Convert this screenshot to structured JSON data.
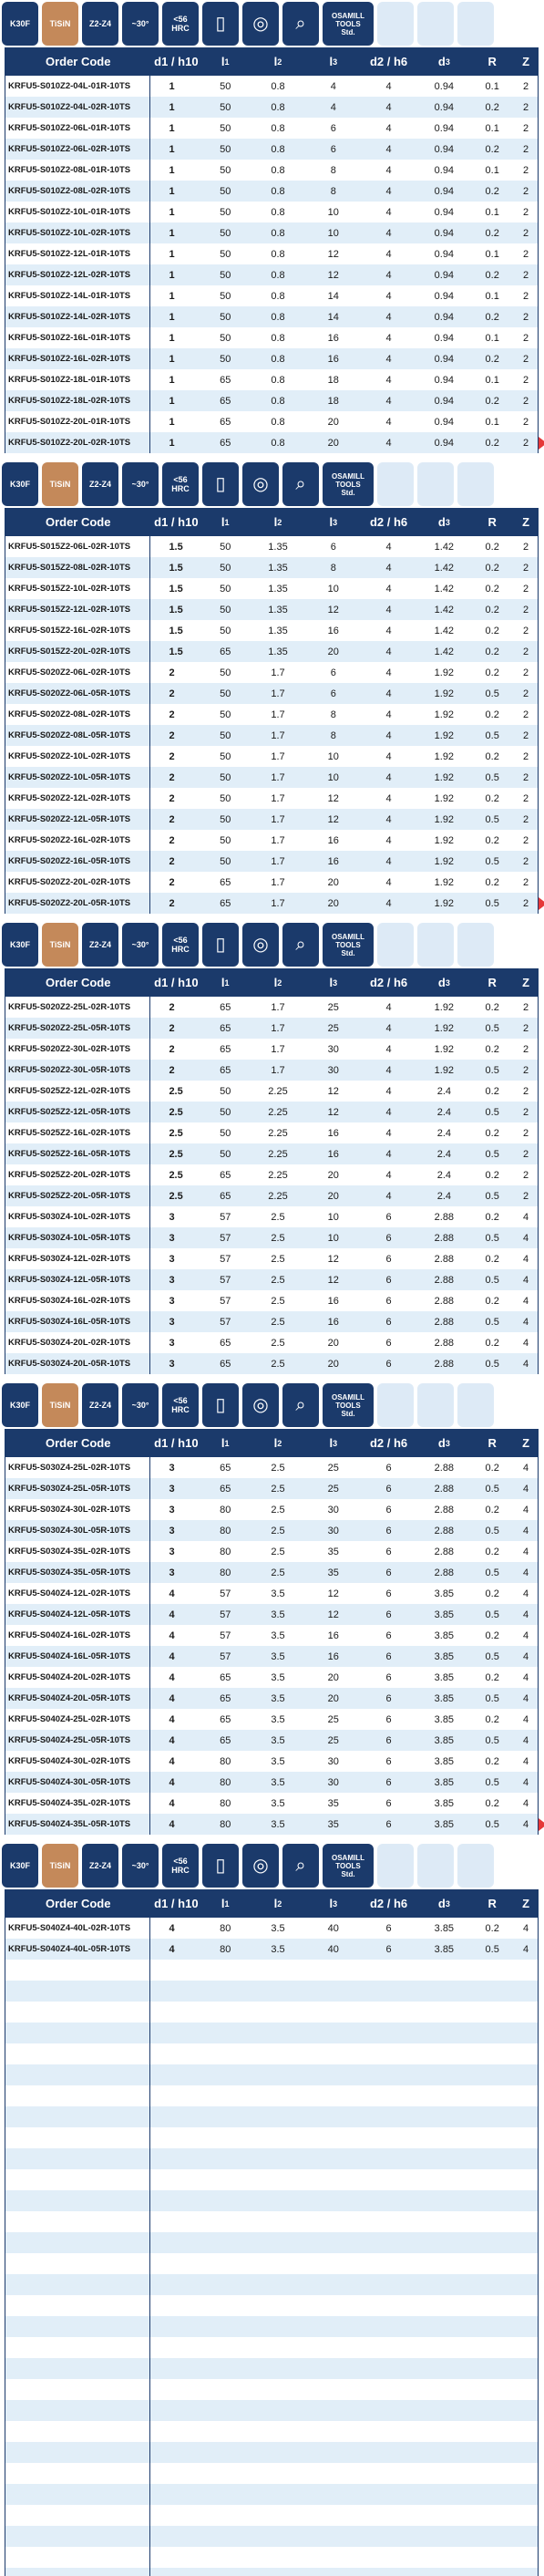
{
  "badges": [
    {
      "icon": "",
      "label": "K30F",
      "style": "dark"
    },
    {
      "icon": "",
      "label": "TiSiN",
      "style": "tan"
    },
    {
      "icon": "",
      "label": "Z2-Z4",
      "style": "dark"
    },
    {
      "icon": "",
      "label": "~30°",
      "style": "dark"
    },
    {
      "icon": "",
      "label": "<56\nHRC",
      "style": "dark"
    },
    {
      "icon": "document-icon",
      "label": "",
      "style": "dark"
    },
    {
      "icon": "globe-icon",
      "label": "",
      "style": "dark"
    },
    {
      "icon": "magnifier-doc-icon",
      "label": "",
      "style": "dark"
    },
    {
      "icon": "",
      "label": "OSAMILL\nTOOLS\nStd.",
      "style": "dark-wide"
    },
    {
      "icon": "",
      "label": "",
      "style": "light"
    },
    {
      "icon": "",
      "label": "",
      "style": "light"
    },
    {
      "icon": "",
      "label": "",
      "style": "light"
    }
  ],
  "headers": {
    "code": "Order Code",
    "d1": "d1 / h10",
    "l1_base": "l",
    "l1_sub": "1",
    "l2_base": "l",
    "l2_sub": "2",
    "l3_base": "l",
    "l3_sub": "3",
    "d2": "d2 / h6",
    "d3_base": "d",
    "d3_sub": "3",
    "r": "R",
    "z": "Z"
  },
  "colors": {
    "navy": "#1b3a6b",
    "tan": "#c4895a",
    "stripe": "#e1eef8",
    "arrow": "#e53838"
  },
  "sections": [
    {
      "arrow": true,
      "blank_rows": 0,
      "rows": [
        [
          "KRFU5-S010Z2-04L-01R-10TS",
          "1",
          "50",
          "0.8",
          "4",
          "4",
          "0.94",
          "0.1",
          "2"
        ],
        [
          "KRFU5-S010Z2-04L-02R-10TS",
          "1",
          "50",
          "0.8",
          "4",
          "4",
          "0.94",
          "0.2",
          "2"
        ],
        [
          "KRFU5-S010Z2-06L-01R-10TS",
          "1",
          "50",
          "0.8",
          "6",
          "4",
          "0.94",
          "0.1",
          "2"
        ],
        [
          "KRFU5-S010Z2-06L-02R-10TS",
          "1",
          "50",
          "0.8",
          "6",
          "4",
          "0.94",
          "0.2",
          "2"
        ],
        [
          "KRFU5-S010Z2-08L-01R-10TS",
          "1",
          "50",
          "0.8",
          "8",
          "4",
          "0.94",
          "0.1",
          "2"
        ],
        [
          "KRFU5-S010Z2-08L-02R-10TS",
          "1",
          "50",
          "0.8",
          "8",
          "4",
          "0.94",
          "0.2",
          "2"
        ],
        [
          "KRFU5-S010Z2-10L-01R-10TS",
          "1",
          "50",
          "0.8",
          "10",
          "4",
          "0.94",
          "0.1",
          "2"
        ],
        [
          "KRFU5-S010Z2-10L-02R-10TS",
          "1",
          "50",
          "0.8",
          "10",
          "4",
          "0.94",
          "0.2",
          "2"
        ],
        [
          "KRFU5-S010Z2-12L-01R-10TS",
          "1",
          "50",
          "0.8",
          "12",
          "4",
          "0.94",
          "0.1",
          "2"
        ],
        [
          "KRFU5-S010Z2-12L-02R-10TS",
          "1",
          "50",
          "0.8",
          "12",
          "4",
          "0.94",
          "0.2",
          "2"
        ],
        [
          "KRFU5-S010Z2-14L-01R-10TS",
          "1",
          "50",
          "0.8",
          "14",
          "4",
          "0.94",
          "0.1",
          "2"
        ],
        [
          "KRFU5-S010Z2-14L-02R-10TS",
          "1",
          "50",
          "0.8",
          "14",
          "4",
          "0.94",
          "0.2",
          "2"
        ],
        [
          "KRFU5-S010Z2-16L-01R-10TS",
          "1",
          "50",
          "0.8",
          "16",
          "4",
          "0.94",
          "0.1",
          "2"
        ],
        [
          "KRFU5-S010Z2-16L-02R-10TS",
          "1",
          "50",
          "0.8",
          "16",
          "4",
          "0.94",
          "0.2",
          "2"
        ],
        [
          "KRFU5-S010Z2-18L-01R-10TS",
          "1",
          "65",
          "0.8",
          "18",
          "4",
          "0.94",
          "0.1",
          "2"
        ],
        [
          "KRFU5-S010Z2-18L-02R-10TS",
          "1",
          "65",
          "0.8",
          "18",
          "4",
          "0.94",
          "0.2",
          "2"
        ],
        [
          "KRFU5-S010Z2-20L-01R-10TS",
          "1",
          "65",
          "0.8",
          "20",
          "4",
          "0.94",
          "0.1",
          "2"
        ],
        [
          "KRFU5-S010Z2-20L-02R-10TS",
          "1",
          "65",
          "0.8",
          "20",
          "4",
          "0.94",
          "0.2",
          "2"
        ]
      ]
    },
    {
      "arrow": true,
      "blank_rows": 0,
      "rows": [
        [
          "KRFU5-S015Z2-06L-02R-10TS",
          "1.5",
          "50",
          "1.35",
          "6",
          "4",
          "1.42",
          "0.2",
          "2"
        ],
        [
          "KRFU5-S015Z2-08L-02R-10TS",
          "1.5",
          "50",
          "1.35",
          "8",
          "4",
          "1.42",
          "0.2",
          "2"
        ],
        [
          "KRFU5-S015Z2-10L-02R-10TS",
          "1.5",
          "50",
          "1.35",
          "10",
          "4",
          "1.42",
          "0.2",
          "2"
        ],
        [
          "KRFU5-S015Z2-12L-02R-10TS",
          "1.5",
          "50",
          "1.35",
          "12",
          "4",
          "1.42",
          "0.2",
          "2"
        ],
        [
          "KRFU5-S015Z2-16L-02R-10TS",
          "1.5",
          "50",
          "1.35",
          "16",
          "4",
          "1.42",
          "0.2",
          "2"
        ],
        [
          "KRFU5-S015Z2-20L-02R-10TS",
          "1.5",
          "65",
          "1.35",
          "20",
          "4",
          "1.42",
          "0.2",
          "2"
        ],
        [
          "KRFU5-S020Z2-06L-02R-10TS",
          "2",
          "50",
          "1.7",
          "6",
          "4",
          "1.92",
          "0.2",
          "2"
        ],
        [
          "KRFU5-S020Z2-06L-05R-10TS",
          "2",
          "50",
          "1.7",
          "6",
          "4",
          "1.92",
          "0.5",
          "2"
        ],
        [
          "KRFU5-S020Z2-08L-02R-10TS",
          "2",
          "50",
          "1.7",
          "8",
          "4",
          "1.92",
          "0.2",
          "2"
        ],
        [
          "KRFU5-S020Z2-08L-05R-10TS",
          "2",
          "50",
          "1.7",
          "8",
          "4",
          "1.92",
          "0.5",
          "2"
        ],
        [
          "KRFU5-S020Z2-10L-02R-10TS",
          "2",
          "50",
          "1.7",
          "10",
          "4",
          "1.92",
          "0.2",
          "2"
        ],
        [
          "KRFU5-S020Z2-10L-05R-10TS",
          "2",
          "50",
          "1.7",
          "10",
          "4",
          "1.92",
          "0.5",
          "2"
        ],
        [
          "KRFU5-S020Z2-12L-02R-10TS",
          "2",
          "50",
          "1.7",
          "12",
          "4",
          "1.92",
          "0.2",
          "2"
        ],
        [
          "KRFU5-S020Z2-12L-05R-10TS",
          "2",
          "50",
          "1.7",
          "12",
          "4",
          "1.92",
          "0.5",
          "2"
        ],
        [
          "KRFU5-S020Z2-16L-02R-10TS",
          "2",
          "50",
          "1.7",
          "16",
          "4",
          "1.92",
          "0.2",
          "2"
        ],
        [
          "KRFU5-S020Z2-16L-05R-10TS",
          "2",
          "50",
          "1.7",
          "16",
          "4",
          "1.92",
          "0.5",
          "2"
        ],
        [
          "KRFU5-S020Z2-20L-02R-10TS",
          "2",
          "65",
          "1.7",
          "20",
          "4",
          "1.92",
          "0.2",
          "2"
        ],
        [
          "KRFU5-S020Z2-20L-05R-10TS",
          "2",
          "65",
          "1.7",
          "20",
          "4",
          "1.92",
          "0.5",
          "2"
        ]
      ]
    },
    {
      "arrow": false,
      "blank_rows": 0,
      "rows": [
        [
          "KRFU5-S020Z2-25L-02R-10TS",
          "2",
          "65",
          "1.7",
          "25",
          "4",
          "1.92",
          "0.2",
          "2"
        ],
        [
          "KRFU5-S020Z2-25L-05R-10TS",
          "2",
          "65",
          "1.7",
          "25",
          "4",
          "1.92",
          "0.5",
          "2"
        ],
        [
          "KRFU5-S020Z2-30L-02R-10TS",
          "2",
          "65",
          "1.7",
          "30",
          "4",
          "1.92",
          "0.2",
          "2"
        ],
        [
          "KRFU5-S020Z2-30L-05R-10TS",
          "2",
          "65",
          "1.7",
          "30",
          "4",
          "1.92",
          "0.5",
          "2"
        ],
        [
          "KRFU5-S025Z2-12L-02R-10TS",
          "2.5",
          "50",
          "2.25",
          "12",
          "4",
          "2.4",
          "0.2",
          "2"
        ],
        [
          "KRFU5-S025Z2-12L-05R-10TS",
          "2.5",
          "50",
          "2.25",
          "12",
          "4",
          "2.4",
          "0.5",
          "2"
        ],
        [
          "KRFU5-S025Z2-16L-02R-10TS",
          "2.5",
          "50",
          "2.25",
          "16",
          "4",
          "2.4",
          "0.2",
          "2"
        ],
        [
          "KRFU5-S025Z2-16L-05R-10TS",
          "2.5",
          "50",
          "2.25",
          "16",
          "4",
          "2.4",
          "0.5",
          "2"
        ],
        [
          "KRFU5-S025Z2-20L-02R-10TS",
          "2.5",
          "65",
          "2.25",
          "20",
          "4",
          "2.4",
          "0.2",
          "2"
        ],
        [
          "KRFU5-S025Z2-20L-05R-10TS",
          "2.5",
          "65",
          "2.25",
          "20",
          "4",
          "2.4",
          "0.5",
          "2"
        ],
        [
          "KRFU5-S030Z4-10L-02R-10TS",
          "3",
          "57",
          "2.5",
          "10",
          "6",
          "2.88",
          "0.2",
          "4"
        ],
        [
          "KRFU5-S030Z4-10L-05R-10TS",
          "3",
          "57",
          "2.5",
          "10",
          "6",
          "2.88",
          "0.5",
          "4"
        ],
        [
          "KRFU5-S030Z4-12L-02R-10TS",
          "3",
          "57",
          "2.5",
          "12",
          "6",
          "2.88",
          "0.2",
          "4"
        ],
        [
          "KRFU5-S030Z4-12L-05R-10TS",
          "3",
          "57",
          "2.5",
          "12",
          "6",
          "2.88",
          "0.5",
          "4"
        ],
        [
          "KRFU5-S030Z4-16L-02R-10TS",
          "3",
          "57",
          "2.5",
          "16",
          "6",
          "2.88",
          "0.2",
          "4"
        ],
        [
          "KRFU5-S030Z4-16L-05R-10TS",
          "3",
          "57",
          "2.5",
          "16",
          "6",
          "2.88",
          "0.5",
          "4"
        ],
        [
          "KRFU5-S030Z4-20L-02R-10TS",
          "3",
          "65",
          "2.5",
          "20",
          "6",
          "2.88",
          "0.2",
          "4"
        ],
        [
          "KRFU5-S030Z4-20L-05R-10TS",
          "3",
          "65",
          "2.5",
          "20",
          "6",
          "2.88",
          "0.5",
          "4"
        ]
      ]
    },
    {
      "arrow": true,
      "blank_rows": 0,
      "rows": [
        [
          "KRFU5-S030Z4-25L-02R-10TS",
          "3",
          "65",
          "2.5",
          "25",
          "6",
          "2.88",
          "0.2",
          "4"
        ],
        [
          "KRFU5-S030Z4-25L-05R-10TS",
          "3",
          "65",
          "2.5",
          "25",
          "6",
          "2.88",
          "0.5",
          "4"
        ],
        [
          "KRFU5-S030Z4-30L-02R-10TS",
          "3",
          "80",
          "2.5",
          "30",
          "6",
          "2.88",
          "0.2",
          "4"
        ],
        [
          "KRFU5-S030Z4-30L-05R-10TS",
          "3",
          "80",
          "2.5",
          "30",
          "6",
          "2.88",
          "0.5",
          "4"
        ],
        [
          "KRFU5-S030Z4-35L-02R-10TS",
          "3",
          "80",
          "2.5",
          "35",
          "6",
          "2.88",
          "0.2",
          "4"
        ],
        [
          "KRFU5-S030Z4-35L-05R-10TS",
          "3",
          "80",
          "2.5",
          "35",
          "6",
          "2.88",
          "0.5",
          "4"
        ],
        [
          "KRFU5-S040Z4-12L-02R-10TS",
          "4",
          "57",
          "3.5",
          "12",
          "6",
          "3.85",
          "0.2",
          "4"
        ],
        [
          "KRFU5-S040Z4-12L-05R-10TS",
          "4",
          "57",
          "3.5",
          "12",
          "6",
          "3.85",
          "0.5",
          "4"
        ],
        [
          "KRFU5-S040Z4-16L-02R-10TS",
          "4",
          "57",
          "3.5",
          "16",
          "6",
          "3.85",
          "0.2",
          "4"
        ],
        [
          "KRFU5-S040Z4-16L-05R-10TS",
          "4",
          "57",
          "3.5",
          "16",
          "6",
          "3.85",
          "0.5",
          "4"
        ],
        [
          "KRFU5-S040Z4-20L-02R-10TS",
          "4",
          "65",
          "3.5",
          "20",
          "6",
          "3.85",
          "0.2",
          "4"
        ],
        [
          "KRFU5-S040Z4-20L-05R-10TS",
          "4",
          "65",
          "3.5",
          "20",
          "6",
          "3.85",
          "0.5",
          "4"
        ],
        [
          "KRFU5-S040Z4-25L-02R-10TS",
          "4",
          "65",
          "3.5",
          "25",
          "6",
          "3.85",
          "0.2",
          "4"
        ],
        [
          "KRFU5-S040Z4-25L-05R-10TS",
          "4",
          "65",
          "3.5",
          "25",
          "6",
          "3.85",
          "0.5",
          "4"
        ],
        [
          "KRFU5-S040Z4-30L-02R-10TS",
          "4",
          "80",
          "3.5",
          "30",
          "6",
          "3.85",
          "0.2",
          "4"
        ],
        [
          "KRFU5-S040Z4-30L-05R-10TS",
          "4",
          "80",
          "3.5",
          "30",
          "6",
          "3.85",
          "0.5",
          "4"
        ],
        [
          "KRFU5-S040Z4-35L-02R-10TS",
          "4",
          "80",
          "3.5",
          "35",
          "6",
          "3.85",
          "0.2",
          "4"
        ],
        [
          "KRFU5-S040Z4-35L-05R-10TS",
          "4",
          "80",
          "3.5",
          "35",
          "6",
          "3.85",
          "0.5",
          "4"
        ]
      ]
    },
    {
      "arrow": false,
      "blank_rows": 30,
      "rows": [
        [
          "KRFU5-S040Z4-40L-02R-10TS",
          "4",
          "80",
          "3.5",
          "40",
          "6",
          "3.85",
          "0.2",
          "4"
        ],
        [
          "KRFU5-S040Z4-40L-05R-10TS",
          "4",
          "80",
          "3.5",
          "40",
          "6",
          "3.85",
          "0.5",
          "4"
        ]
      ]
    }
  ]
}
